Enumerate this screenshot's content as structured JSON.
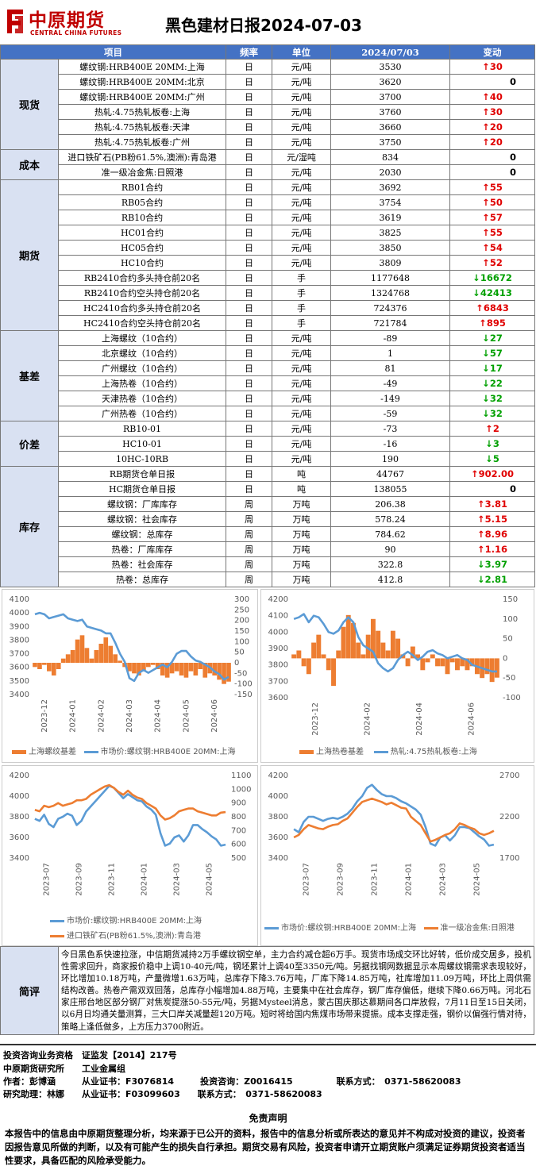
{
  "header": {
    "logo_cn": "中原期货",
    "logo_en": "CENTRAL CHINA FUTURES",
    "title": "黑色建材日报2024-07-03"
  },
  "table": {
    "columns": [
      "项目",
      "频率",
      "单位",
      "2024/07/03",
      "变动"
    ],
    "groups": [
      {
        "category": "现货",
        "rows": [
          {
            "name": "螺纹钢:HRB400E 20MM:上海",
            "freq": "日",
            "unit": "元/吨",
            "value": "3530",
            "change": "30",
            "dir": "up"
          },
          {
            "name": "螺纹钢:HRB400E 20MM:北京",
            "freq": "日",
            "unit": "元/吨",
            "value": "3620",
            "change": "0",
            "dir": "zero"
          },
          {
            "name": "螺纹钢:HRB400E 20MM:广州",
            "freq": "日",
            "unit": "元/吨",
            "value": "3700",
            "change": "40",
            "dir": "up"
          },
          {
            "name": "热轧:4.75热轧板卷:上海",
            "freq": "日",
            "unit": "元/吨",
            "value": "3760",
            "change": "30",
            "dir": "up"
          },
          {
            "name": "热轧:4.75热轧板卷:天津",
            "freq": "日",
            "unit": "元/吨",
            "value": "3660",
            "change": "20",
            "dir": "up"
          },
          {
            "name": "热轧:4.75热轧板卷:广州",
            "freq": "日",
            "unit": "元/吨",
            "value": "3750",
            "change": "20",
            "dir": "up"
          }
        ]
      },
      {
        "category": "成本",
        "rows": [
          {
            "name": "进口铁矿石(PB粉61.5%,澳洲):青岛港",
            "freq": "日",
            "unit": "元/湿吨",
            "value": "834",
            "change": "0",
            "dir": "zero"
          },
          {
            "name": "准一级冶金焦:日照港",
            "freq": "日",
            "unit": "元/吨",
            "value": "2030",
            "change": "0",
            "dir": "zero"
          }
        ]
      },
      {
        "category": "期货",
        "rows": [
          {
            "name": "RB01合约",
            "freq": "日",
            "unit": "元/吨",
            "value": "3692",
            "change": "55",
            "dir": "up"
          },
          {
            "name": "RB05合约",
            "freq": "日",
            "unit": "元/吨",
            "value": "3754",
            "change": "50",
            "dir": "up"
          },
          {
            "name": "RB10合约",
            "freq": "日",
            "unit": "元/吨",
            "value": "3619",
            "change": "57",
            "dir": "up"
          },
          {
            "name": "HC01合约",
            "freq": "日",
            "unit": "元/吨",
            "value": "3825",
            "change": "55",
            "dir": "up"
          },
          {
            "name": "HC05合约",
            "freq": "日",
            "unit": "元/吨",
            "value": "3850",
            "change": "54",
            "dir": "up"
          },
          {
            "name": "HC10合约",
            "freq": "日",
            "unit": "元/吨",
            "value": "3809",
            "change": "52",
            "dir": "up"
          },
          {
            "name": "RB2410合约多头持仓前20名",
            "freq": "日",
            "unit": "手",
            "value": "1177648",
            "change": "16672",
            "dir": "dn"
          },
          {
            "name": "RB2410合约空头持仓前20名",
            "freq": "日",
            "unit": "手",
            "value": "1324768",
            "change": "42413",
            "dir": "dn"
          },
          {
            "name": "HC2410合约多头持仓前20名",
            "freq": "日",
            "unit": "手",
            "value": "724376",
            "change": "6843",
            "dir": "up"
          },
          {
            "name": "HC2410合约空头持仓前20名",
            "freq": "日",
            "unit": "手",
            "value": "721784",
            "change": "895",
            "dir": "up"
          }
        ]
      },
      {
        "category": "基差",
        "rows": [
          {
            "name": "上海螺纹（10合约）",
            "freq": "日",
            "unit": "元/吨",
            "value": "-89",
            "change": "27",
            "dir": "dn"
          },
          {
            "name": "北京螺纹（10合约）",
            "freq": "日",
            "unit": "元/吨",
            "value": "1",
            "change": "57",
            "dir": "dn"
          },
          {
            "name": "广州螺纹（10合约）",
            "freq": "日",
            "unit": "元/吨",
            "value": "81",
            "change": "17",
            "dir": "dn"
          },
          {
            "name": "上海热卷（10合约）",
            "freq": "日",
            "unit": "元/吨",
            "value": "-49",
            "change": "22",
            "dir": "dn"
          },
          {
            "name": "天津热卷（10合约）",
            "freq": "日",
            "unit": "元/吨",
            "value": "-149",
            "change": "32",
            "dir": "dn"
          },
          {
            "name": "广州热卷（10合约）",
            "freq": "日",
            "unit": "元/吨",
            "value": "-59",
            "change": "32",
            "dir": "dn"
          }
        ]
      },
      {
        "category": "价差",
        "rows": [
          {
            "name": "RB10-01",
            "freq": "日",
            "unit": "元/吨",
            "value": "-73",
            "change": "2",
            "dir": "up"
          },
          {
            "name": "HC10-01",
            "freq": "日",
            "unit": "元/吨",
            "value": "-16",
            "change": "3",
            "dir": "dn"
          },
          {
            "name": "10HC-10RB",
            "freq": "日",
            "unit": "元/吨",
            "value": "190",
            "change": "5",
            "dir": "dn"
          }
        ]
      },
      {
        "category": "库存",
        "rows": [
          {
            "name": "RB期货仓单日报",
            "freq": "日",
            "unit": "吨",
            "value": "44767",
            "change": "902.00",
            "dir": "up"
          },
          {
            "name": "HC期货仓单日报",
            "freq": "日",
            "unit": "吨",
            "value": "138055",
            "change": "0",
            "dir": "zero"
          },
          {
            "name": "螺纹钢：厂库库存",
            "freq": "周",
            "unit": "万吨",
            "value": "206.38",
            "change": "3.81",
            "dir": "up"
          },
          {
            "name": "螺纹钢：社会库存",
            "freq": "周",
            "unit": "万吨",
            "value": "578.24",
            "change": "5.15",
            "dir": "up"
          },
          {
            "name": "螺纹钢：总库存",
            "freq": "周",
            "unit": "万吨",
            "value": "784.62",
            "change": "8.96",
            "dir": "up"
          },
          {
            "name": "热卷：厂库库存",
            "freq": "周",
            "unit": "万吨",
            "value": "90",
            "change": "1.16",
            "dir": "up"
          },
          {
            "name": "热卷：社会库存",
            "freq": "周",
            "unit": "万吨",
            "value": "322.8",
            "change": "3.97",
            "dir": "dn"
          },
          {
            "name": "热卷：总库存",
            "freq": "周",
            "unit": "万吨",
            "value": "412.8",
            "change": "2.81",
            "dir": "dn"
          }
        ]
      }
    ]
  },
  "colors": {
    "up": "#e00000",
    "down": "#00a000",
    "bar": "#ed7d31",
    "line_blue": "#5b9bd5",
    "line_orange": "#ed7d31",
    "header_bg": "#4472c4",
    "cat_bg": "#d9e1f2"
  },
  "chart_data": [
    {
      "type": "bar+line",
      "left_axis": {
        "ticks": [
          "4100",
          "4000",
          "3900",
          "3800",
          "3700",
          "3600",
          "3500",
          "3400"
        ],
        "range": [
          3400,
          4100
        ]
      },
      "right_axis": {
        "ticks": [
          "300",
          "250",
          "200",
          "150",
          "100",
          "50",
          "0",
          "-50",
          "-100",
          "-150"
        ],
        "range": [
          -150,
          300
        ]
      },
      "x_ticks": [
        "2023-12",
        "2024-01",
        "2024-02",
        "2024-03",
        "2024-04",
        "2024-05",
        "2024-06"
      ],
      "series": [
        {
          "name": "上海螺纹基差",
          "kind": "bar",
          "axis": "right",
          "values": [
            -20,
            -30,
            -10,
            -40,
            -60,
            -30,
            20,
            40,
            60,
            110,
            130,
            70,
            20,
            60,
            90,
            120,
            80,
            40,
            10,
            -20,
            -40,
            -50,
            -60,
            -40,
            -20,
            -10,
            -30,
            -60,
            -70,
            -50,
            -40,
            -60,
            -70,
            -40,
            -60,
            -30,
            -70,
            -50,
            -60,
            -80,
            -100,
            -89
          ]
        },
        {
          "name": "市场价:螺纹钢:HRB400E 20MM:上海",
          "kind": "line",
          "axis": "left",
          "values": [
            3990,
            4000,
            3990,
            3960,
            3970,
            3980,
            3990,
            3960,
            3950,
            3940,
            3950,
            3900,
            3890,
            3880,
            3870,
            3850,
            3850,
            3780,
            3700,
            3640,
            3520,
            3500,
            3560,
            3580,
            3560,
            3580,
            3600,
            3620,
            3600,
            3640,
            3700,
            3720,
            3720,
            3680,
            3650,
            3640,
            3620,
            3600,
            3570,
            3550,
            3510,
            3530
          ]
        }
      ]
    },
    {
      "type": "bar+line",
      "left_axis": {
        "ticks": [
          "4200",
          "4100",
          "4000",
          "3900",
          "3800",
          "3700",
          "3600"
        ],
        "range": [
          3600,
          4200
        ]
      },
      "right_axis": {
        "ticks": [
          "150",
          "100",
          "50",
          "0",
          "-50",
          "-100"
        ],
        "range": [
          -100,
          150
        ]
      },
      "x_ticks": [
        "2023-12",
        "2024-02",
        "2024-04",
        "2024-06"
      ],
      "series": [
        {
          "name": "上海热卷基差",
          "kind": "bar",
          "axis": "right",
          "values": [
            10,
            20,
            -20,
            -40,
            40,
            60,
            10,
            -30,
            -70,
            20,
            80,
            110,
            90,
            40,
            10,
            60,
            100,
            70,
            40,
            20,
            70,
            50,
            10,
            -20,
            30,
            10,
            -30,
            -10,
            10,
            -20,
            -20,
            -40,
            -10,
            -30,
            -20,
            -30,
            -20,
            -40,
            -50,
            -40,
            -60,
            -49
          ]
        },
        {
          "name": "热轧:4.75热轧板卷:上海",
          "kind": "line",
          "axis": "left",
          "values": [
            4080,
            4090,
            4110,
            4060,
            4100,
            4090,
            4050,
            4000,
            3990,
            4010,
            4060,
            4090,
            4060,
            3970,
            3920,
            3900,
            3880,
            3810,
            3780,
            3760,
            3780,
            3830,
            3860,
            3880,
            3860,
            3830,
            3850,
            3880,
            3890,
            3870,
            3860,
            3840,
            3850,
            3860,
            3840,
            3830,
            3800,
            3790,
            3780,
            3770,
            3760,
            3760
          ]
        }
      ]
    },
    {
      "type": "line",
      "left_axis": {
        "ticks": [
          "4200",
          "4000",
          "3800",
          "3600",
          "3400"
        ],
        "range": [
          3400,
          4200
        ]
      },
      "right_axis": {
        "ticks": [
          "1100",
          "1000",
          "900",
          "800",
          "700",
          "600",
          "500"
        ],
        "range": [
          500,
          1100
        ]
      },
      "x_ticks": [
        "2023-07",
        "2023-09",
        "2023-11",
        "2024-01",
        "2024-03",
        "2024-05"
      ],
      "series": [
        {
          "name": "市场价:螺纹钢:HRB400E 20MM:上海",
          "kind": "line",
          "axis": "left",
          "values": [
            3780,
            3760,
            3820,
            3730,
            3700,
            3780,
            3800,
            3830,
            3810,
            3720,
            3760,
            3850,
            3900,
            3950,
            4000,
            4050,
            4100,
            4080,
            4030,
            3980,
            4020,
            3990,
            3960,
            3950,
            3900,
            3870,
            3820,
            3640,
            3520,
            3540,
            3600,
            3620,
            3560,
            3620,
            3720,
            3720,
            3680,
            3650,
            3610,
            3580,
            3520,
            3530
          ]
        },
        {
          "name": "进口铁矿石(PB粉61.5%,澳洲):青岛港",
          "kind": "line",
          "axis": "right",
          "values": [
            850,
            840,
            880,
            870,
            880,
            900,
            880,
            890,
            900,
            920,
            920,
            930,
            960,
            980,
            1000,
            1020,
            1030,
            1010,
            980,
            960,
            990,
            960,
            940,
            930,
            900,
            880,
            860,
            810,
            780,
            790,
            810,
            840,
            850,
            860,
            860,
            840,
            830,
            820,
            810,
            810,
            830,
            834
          ]
        }
      ]
    },
    {
      "type": "line",
      "left_axis": {
        "ticks": [
          "4200",
          "4000",
          "3800",
          "3600",
          "3400"
        ],
        "range": [
          3400,
          4200
        ]
      },
      "right_axis": {
        "ticks": [
          "2700",
          "2200",
          "1700"
        ],
        "range": [
          1700,
          2700
        ]
      },
      "x_ticks": [
        "2023-07",
        "2023-09",
        "2023-11",
        "2024-01",
        "2024-03",
        "2024-05"
      ],
      "series": [
        {
          "name": "市场价:螺纹钢:HRB400E 20MM:上海",
          "kind": "line",
          "axis": "left",
          "values": [
            3680,
            3650,
            3750,
            3800,
            3800,
            3780,
            3760,
            3780,
            3790,
            3780,
            3800,
            3830,
            3880,
            3950,
            4000,
            4080,
            4110,
            4060,
            4020,
            4000,
            4000,
            3980,
            3950,
            3930,
            3900,
            3870,
            3820,
            3700,
            3540,
            3520,
            3600,
            3620,
            3570,
            3620,
            3700,
            3700,
            3690,
            3650,
            3610,
            3580,
            3520,
            3530
          ]
        },
        {
          "name": "准一级冶金焦:日照港",
          "kind": "line",
          "axis": "right",
          "values": [
            1950,
            1980,
            2050,
            2100,
            2080,
            2060,
            2050,
            2080,
            2100,
            2110,
            2150,
            2180,
            2250,
            2320,
            2380,
            2400,
            2420,
            2400,
            2380,
            2350,
            2370,
            2340,
            2310,
            2300,
            2200,
            2150,
            2100,
            2000,
            1900,
            1920,
            1950,
            1980,
            2000,
            2050,
            2120,
            2100,
            2070,
            2050,
            2000,
            1980,
            2000,
            2030
          ]
        }
      ]
    }
  ],
  "comment": {
    "label": "简评",
    "text": "今日黑色系快速拉涨，中信期货减持2万手螺纹钢空单，主力合约减仓超6万手。现货市场成交环比好转，低价成交居多，投机性需求回升，商家报价稳中上调10-40元/吨，钢坯累计上调40至3350元/吨。另据找钢网数据显示本周螺纹钢需求表现较好，环比增加10.18万吨，产量微增1.63万吨，总库存下降3.76万吨，厂库下降14.85万吨，社库增加11.09万吨，环比上周供需结构改善。热卷产需双双回落，总库存小幅增加4.88万吨，主要集中在社会库存，钢厂库存偏低，继续下降0.66万吨。河北石家庄邢台地区部分钢厂对焦炭提涨50-55元/吨，另据Mysteel消息，蒙古国庆那达慕期间各口岸放假，7月11日至15日关闭，以6月日均通关量测算，三大口岸关减量超120万吨。短时将给国内焦煤市场带来提振。成本支撑走强，钢价以偏强行情对待，策略上逢低做多，上方压力3700附近。"
  },
  "info": {
    "line1": "投资咨询业务资格　证监发【2014】217号",
    "line2": "中原期货研究所　　工业金属组",
    "line3": "作者：彭博涵　　　从业证书：F3076814　　　投资咨询：Z0016415　　　　　联系方式：　0371-58620083",
    "line4": "研究助理：林娜　　从业证书：F03099603　　联系方式：　0371-58620083"
  },
  "disclaimer": {
    "title": "免责声明",
    "body": "本报告中的信息由中原期货整理分析，均来源于已公开的资料，报告中的信息分析或所表达的意见并不构成对投资的建议，投资者因报告意见所做的判断，以及有可能产生的损失自行承担。期货交易有风险，投资者申请开立期货账户须满足证券期货投资者适当性要求，具备匹配的风险承受能力。"
  }
}
